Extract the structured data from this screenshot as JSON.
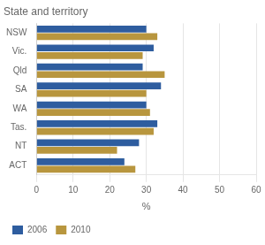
{
  "chart_data": {
    "type": "bar",
    "orientation": "horizontal",
    "title": "State and territory",
    "categories": [
      "NSW",
      "Vic.",
      "Qld",
      "SA",
      "WA",
      "Tas.",
      "NT",
      "ACT"
    ],
    "series": [
      {
        "name": "2006",
        "color": "#2E5D9F",
        "values": [
          30,
          32,
          29,
          34,
          30,
          33,
          28,
          24
        ]
      },
      {
        "name": "2010",
        "color": "#B8963E",
        "values": [
          33,
          29,
          35,
          30,
          31,
          32,
          22,
          27
        ]
      }
    ],
    "xlabel": "%",
    "xlim": [
      0,
      60
    ],
    "xticks": [
      0,
      10,
      20,
      30,
      40,
      50,
      60
    ],
    "grid": true,
    "legend": "bottom"
  }
}
